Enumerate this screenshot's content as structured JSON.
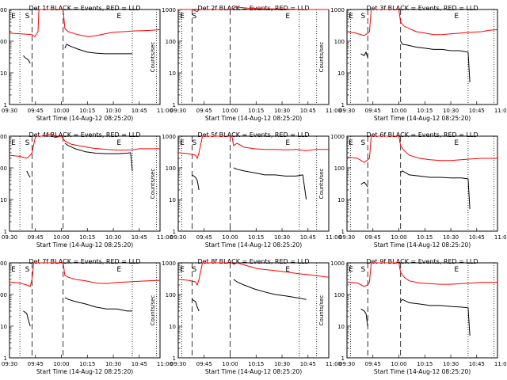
{
  "figure": {
    "x_label": "Start Time (14-Aug-12 08:25:20)",
    "y_label": "Counts/sec"
  },
  "chart_data": [
    {
      "panel": "Det 1f",
      "title": "Det 1f BLACK = Events, RED = LLD",
      "type": "line",
      "y_scale": "log",
      "ylim": [
        1,
        1000
      ],
      "x_tick_labels": [
        "09:30",
        "09:45",
        "10:00",
        "10:15",
        "10:30",
        "10:45",
        "11:00"
      ],
      "y_tick_labels": [
        "1",
        "10",
        "100",
        "1000"
      ],
      "markers": [
        "E",
        "S",
        "E"
      ],
      "series": [
        {
          "color": "#ff0000",
          "x_minutes": [
            0,
            13,
            14.5,
            15,
            16.5,
            17,
            31,
            32,
            34,
            38,
            42,
            46,
            50,
            55,
            60,
            66,
            71,
            77,
            82,
            87
          ],
          "values": [
            180,
            160,
            140,
            150,
            200,
            1000,
            1000,
            250,
            200,
            170,
            150,
            140,
            150,
            170,
            190,
            200,
            210,
            215,
            220,
            230
          ]
        },
        {
          "color": "#000000",
          "x_minutes": [
            8,
            9,
            10,
            11,
            12
          ],
          "values": [
            35,
            30,
            28,
            25,
            20
          ]
        },
        {
          "color": "#000000",
          "x_minutes": [
            32,
            33,
            35,
            40,
            45,
            50,
            55,
            60,
            65,
            70,
            71
          ],
          "values": [
            60,
            80,
            70,
            55,
            45,
            42,
            40,
            40,
            40,
            40,
            40
          ]
        }
      ]
    },
    {
      "panel": "Det 2f",
      "title": "Det 2f BLACK = Events, RED = LLD",
      "type": "line",
      "y_scale": "log",
      "ylim": [
        1,
        1000
      ],
      "x_tick_labels": [
        "09:30",
        "09:45",
        "10:00",
        "10:15",
        "10:30",
        "10:45",
        "11:00"
      ],
      "y_tick_labels": [
        "1",
        "10",
        "100",
        "1000"
      ],
      "markers": [
        "E",
        "S",
        "E"
      ],
      "series": [
        {
          "color": "#ff0000",
          "x_minutes": [
            0,
            8,
            10,
            11,
            12,
            20,
            28,
            31,
            33,
            40,
            50,
            60,
            70,
            80,
            87
          ],
          "values": [
            1000,
            1000,
            900,
            850,
            1000,
            1000,
            1000,
            1000,
            1200,
            1100,
            1050,
            1050,
            1000,
            1000,
            1000
          ]
        }
      ]
    },
    {
      "panel": "Det 3f",
      "title": "Det 3f BLACK = Events, RED = LLD",
      "type": "line",
      "y_scale": "log",
      "ylim": [
        1,
        1000
      ],
      "x_tick_labels": [
        "09:30",
        "09:45",
        "10:00",
        "10:15",
        "10:30",
        "10:45",
        "11:00"
      ],
      "y_tick_labels": [
        "1",
        "10",
        "100",
        "1000"
      ],
      "markers": [
        "E",
        "S",
        "E"
      ],
      "series": [
        {
          "color": "#ff0000",
          "x_minutes": [
            0,
            5,
            10,
            12,
            13,
            14,
            30,
            31,
            33,
            36,
            40,
            45,
            50,
            55,
            60,
            66,
            72,
            78,
            82,
            87
          ],
          "values": [
            200,
            180,
            150,
            180,
            200,
            1000,
            1000,
            400,
            300,
            250,
            200,
            180,
            160,
            160,
            170,
            180,
            190,
            200,
            220,
            230
          ]
        },
        {
          "color": "#000000",
          "x_minutes": [
            8,
            10,
            11,
            12
          ],
          "values": [
            40,
            35,
            45,
            30
          ]
        },
        {
          "color": "#000000",
          "x_minutes": [
            31,
            32,
            35,
            40,
            45,
            50,
            55,
            60,
            65,
            70,
            71
          ],
          "values": [
            100,
            80,
            75,
            65,
            60,
            55,
            55,
            50,
            50,
            45,
            5
          ]
        }
      ]
    },
    {
      "panel": "Det 4f",
      "title": "Det 4f BLACK = Events, RED = LLD",
      "type": "line",
      "y_scale": "log",
      "ylim": [
        1,
        1000
      ],
      "x_tick_labels": [
        "09:30",
        "09:45",
        "10:00",
        "10:15",
        "10:30",
        "10:45",
        "11:00"
      ],
      "y_tick_labels": [
        "1",
        "10",
        "100",
        "1000"
      ],
      "markers": [
        "E",
        "S",
        "E"
      ],
      "series": [
        {
          "color": "#ff0000",
          "x_minutes": [
            0,
            6,
            10,
            12,
            13,
            15,
            20,
            24,
            26,
            30,
            32,
            36,
            40,
            48,
            56,
            64,
            71,
            75,
            80,
            87
          ],
          "values": [
            250,
            230,
            200,
            250,
            300,
            1000,
            1000,
            1200,
            900,
            1000,
            700,
            550,
            500,
            420,
            380,
            360,
            370,
            400,
            400,
            400
          ]
        },
        {
          "color": "#000000",
          "x_minutes": [
            10,
            11,
            12
          ],
          "values": [
            80,
            60,
            50
          ]
        },
        {
          "color": "#000000",
          "x_minutes": [
            32,
            34,
            38,
            44,
            50,
            56,
            62,
            68,
            70,
            71
          ],
          "values": [
            600,
            500,
            400,
            320,
            290,
            280,
            280,
            290,
            300,
            80
          ]
        }
      ]
    },
    {
      "panel": "Det 5f",
      "title": "Det 5f BLACK = Events, RED = LLD",
      "type": "line",
      "y_scale": "log",
      "ylim": [
        1,
        1000
      ],
      "x_tick_labels": [
        "09:30",
        "09:45",
        "10:00",
        "10:15",
        "10:30",
        "10:45",
        "11:00"
      ],
      "y_tick_labels": [
        "1",
        "10",
        "100",
        "1000"
      ],
      "markers": [
        "E",
        "S",
        "E"
      ],
      "series": [
        {
          "color": "#ff0000",
          "x_minutes": [
            0,
            6,
            10,
            11,
            12,
            14,
            31,
            32,
            34,
            38,
            44,
            50,
            56,
            62,
            68,
            74,
            80,
            87
          ],
          "values": [
            300,
            280,
            250,
            200,
            300,
            1000,
            1000,
            500,
            600,
            450,
            400,
            380,
            380,
            370,
            380,
            350,
            380,
            380
          ]
        },
        {
          "color": "#000000",
          "x_minutes": [
            8,
            10,
            11,
            12
          ],
          "values": [
            60,
            50,
            40,
            20
          ]
        },
        {
          "color": "#000000",
          "x_minutes": [
            32,
            34,
            38,
            44,
            50,
            56,
            62,
            68,
            72,
            74
          ],
          "values": [
            100,
            90,
            80,
            70,
            60,
            60,
            55,
            55,
            60,
            10
          ]
        }
      ]
    },
    {
      "panel": "Det 6f",
      "title": "Det 6f BLACK = Events, RED = LLD",
      "type": "line",
      "y_scale": "log",
      "ylim": [
        1,
        1000
      ],
      "x_tick_labels": [
        "09:30",
        "09:45",
        "10:00",
        "10:15",
        "10:30",
        "10:45",
        "11:00"
      ],
      "y_tick_labels": [
        "1",
        "10",
        "100",
        "1000"
      ],
      "markers": [
        "E",
        "S",
        "E"
      ],
      "series": [
        {
          "color": "#ff0000",
          "x_minutes": [
            0,
            6,
            10,
            12,
            13,
            14,
            30,
            31,
            33,
            36,
            42,
            48,
            54,
            60,
            66,
            72,
            78,
            87
          ],
          "values": [
            220,
            200,
            150,
            180,
            200,
            1000,
            1000,
            500,
            350,
            250,
            200,
            180,
            170,
            170,
            180,
            190,
            200,
            200
          ]
        },
        {
          "color": "#000000",
          "x_minutes": [
            8,
            10,
            11,
            12
          ],
          "values": [
            30,
            35,
            30,
            25
          ]
        },
        {
          "color": "#000000",
          "x_minutes": [
            31,
            32,
            36,
            42,
            48,
            54,
            60,
            66,
            70,
            71
          ],
          "values": [
            70,
            80,
            60,
            55,
            50,
            50,
            48,
            48,
            45,
            5
          ]
        }
      ]
    },
    {
      "panel": "Det 7f",
      "title": "Det 7f BLACK = Events, RED = LLD",
      "type": "line",
      "y_scale": "log",
      "ylim": [
        1,
        1000
      ],
      "x_tick_labels": [
        "09:30",
        "09:45",
        "10:00",
        "10:15",
        "10:30",
        "10:45",
        "11:00"
      ],
      "y_tick_labels": [
        "1",
        "10",
        "100",
        "1000"
      ],
      "markers": [
        "E",
        "S",
        "E"
      ],
      "series": [
        {
          "color": "#ff0000",
          "x_minutes": [
            0,
            6,
            10,
            12,
            13,
            14,
            31,
            32,
            34,
            38,
            44,
            50,
            56,
            62,
            68,
            74,
            80,
            87
          ],
          "values": [
            250,
            230,
            200,
            180,
            300,
            1000,
            1000,
            400,
            350,
            300,
            270,
            230,
            220,
            240,
            250,
            260,
            270,
            280
          ]
        },
        {
          "color": "#000000",
          "x_minutes": [
            8,
            10,
            11,
            12
          ],
          "values": [
            30,
            25,
            15,
            10
          ]
        },
        {
          "color": "#000000",
          "x_minutes": [
            32,
            34,
            38,
            44,
            50,
            56,
            62,
            68,
            71
          ],
          "values": [
            80,
            70,
            60,
            50,
            40,
            35,
            35,
            30,
            30
          ]
        }
      ]
    },
    {
      "panel": "Det 8f",
      "title": "Det 8f BLACK = Events, RED = LLD",
      "type": "line",
      "y_scale": "log",
      "ylim": [
        1,
        1000
      ],
      "x_tick_labels": [
        "09:30",
        "09:45",
        "10:00",
        "10:15",
        "10:30",
        "10:45",
        "11:00"
      ],
      "y_tick_labels": [
        "1",
        "10",
        "100",
        "1000"
      ],
      "markers": [
        "E",
        "S",
        "E"
      ],
      "series": [
        {
          "color": "#ff0000",
          "x_minutes": [
            0,
            6,
            10,
            11,
            12,
            14,
            31,
            32,
            34,
            40,
            46,
            52,
            58,
            64,
            70,
            76,
            82,
            87
          ],
          "values": [
            300,
            280,
            250,
            200,
            300,
            1000,
            1000,
            900,
            1000,
            800,
            650,
            600,
            550,
            500,
            450,
            420,
            380,
            350
          ]
        },
        {
          "color": "#000000",
          "x_minutes": [
            8,
            10,
            11,
            12
          ],
          "values": [
            70,
            60,
            40,
            30
          ]
        },
        {
          "color": "#000000",
          "x_minutes": [
            32,
            34,
            38,
            44,
            50,
            56,
            62,
            68,
            74
          ],
          "values": [
            300,
            250,
            200,
            150,
            120,
            100,
            90,
            80,
            70
          ]
        }
      ]
    },
    {
      "panel": "Det 9f",
      "title": "Det 9f BLACK = Events, RED = LLD",
      "type": "line",
      "y_scale": "log",
      "ylim": [
        1,
        1000
      ],
      "x_tick_labels": [
        "09:30",
        "09:45",
        "10:00",
        "10:15",
        "10:30",
        "10:45",
        "11:00"
      ],
      "y_tick_labels": [
        "1",
        "10",
        "100",
        "1000"
      ],
      "markers": [
        "E",
        "S",
        "E"
      ],
      "series": [
        {
          "color": "#ff0000",
          "x_minutes": [
            0,
            6,
            10,
            12,
            13,
            14,
            30,
            31,
            33,
            36,
            42,
            48,
            54,
            60,
            66,
            72,
            78,
            87
          ],
          "values": [
            250,
            230,
            180,
            200,
            250,
            1000,
            1000,
            500,
            350,
            270,
            230,
            220,
            210,
            210,
            220,
            230,
            240,
            240
          ]
        },
        {
          "color": "#000000",
          "x_minutes": [
            8,
            10,
            11,
            12
          ],
          "values": [
            35,
            30,
            25,
            10
          ]
        },
        {
          "color": "#000000",
          "x_minutes": [
            31,
            32,
            36,
            42,
            48,
            54,
            60,
            66,
            70,
            71
          ],
          "values": [
            60,
            70,
            55,
            50,
            45,
            45,
            42,
            40,
            38,
            5
          ]
        }
      ]
    }
  ]
}
